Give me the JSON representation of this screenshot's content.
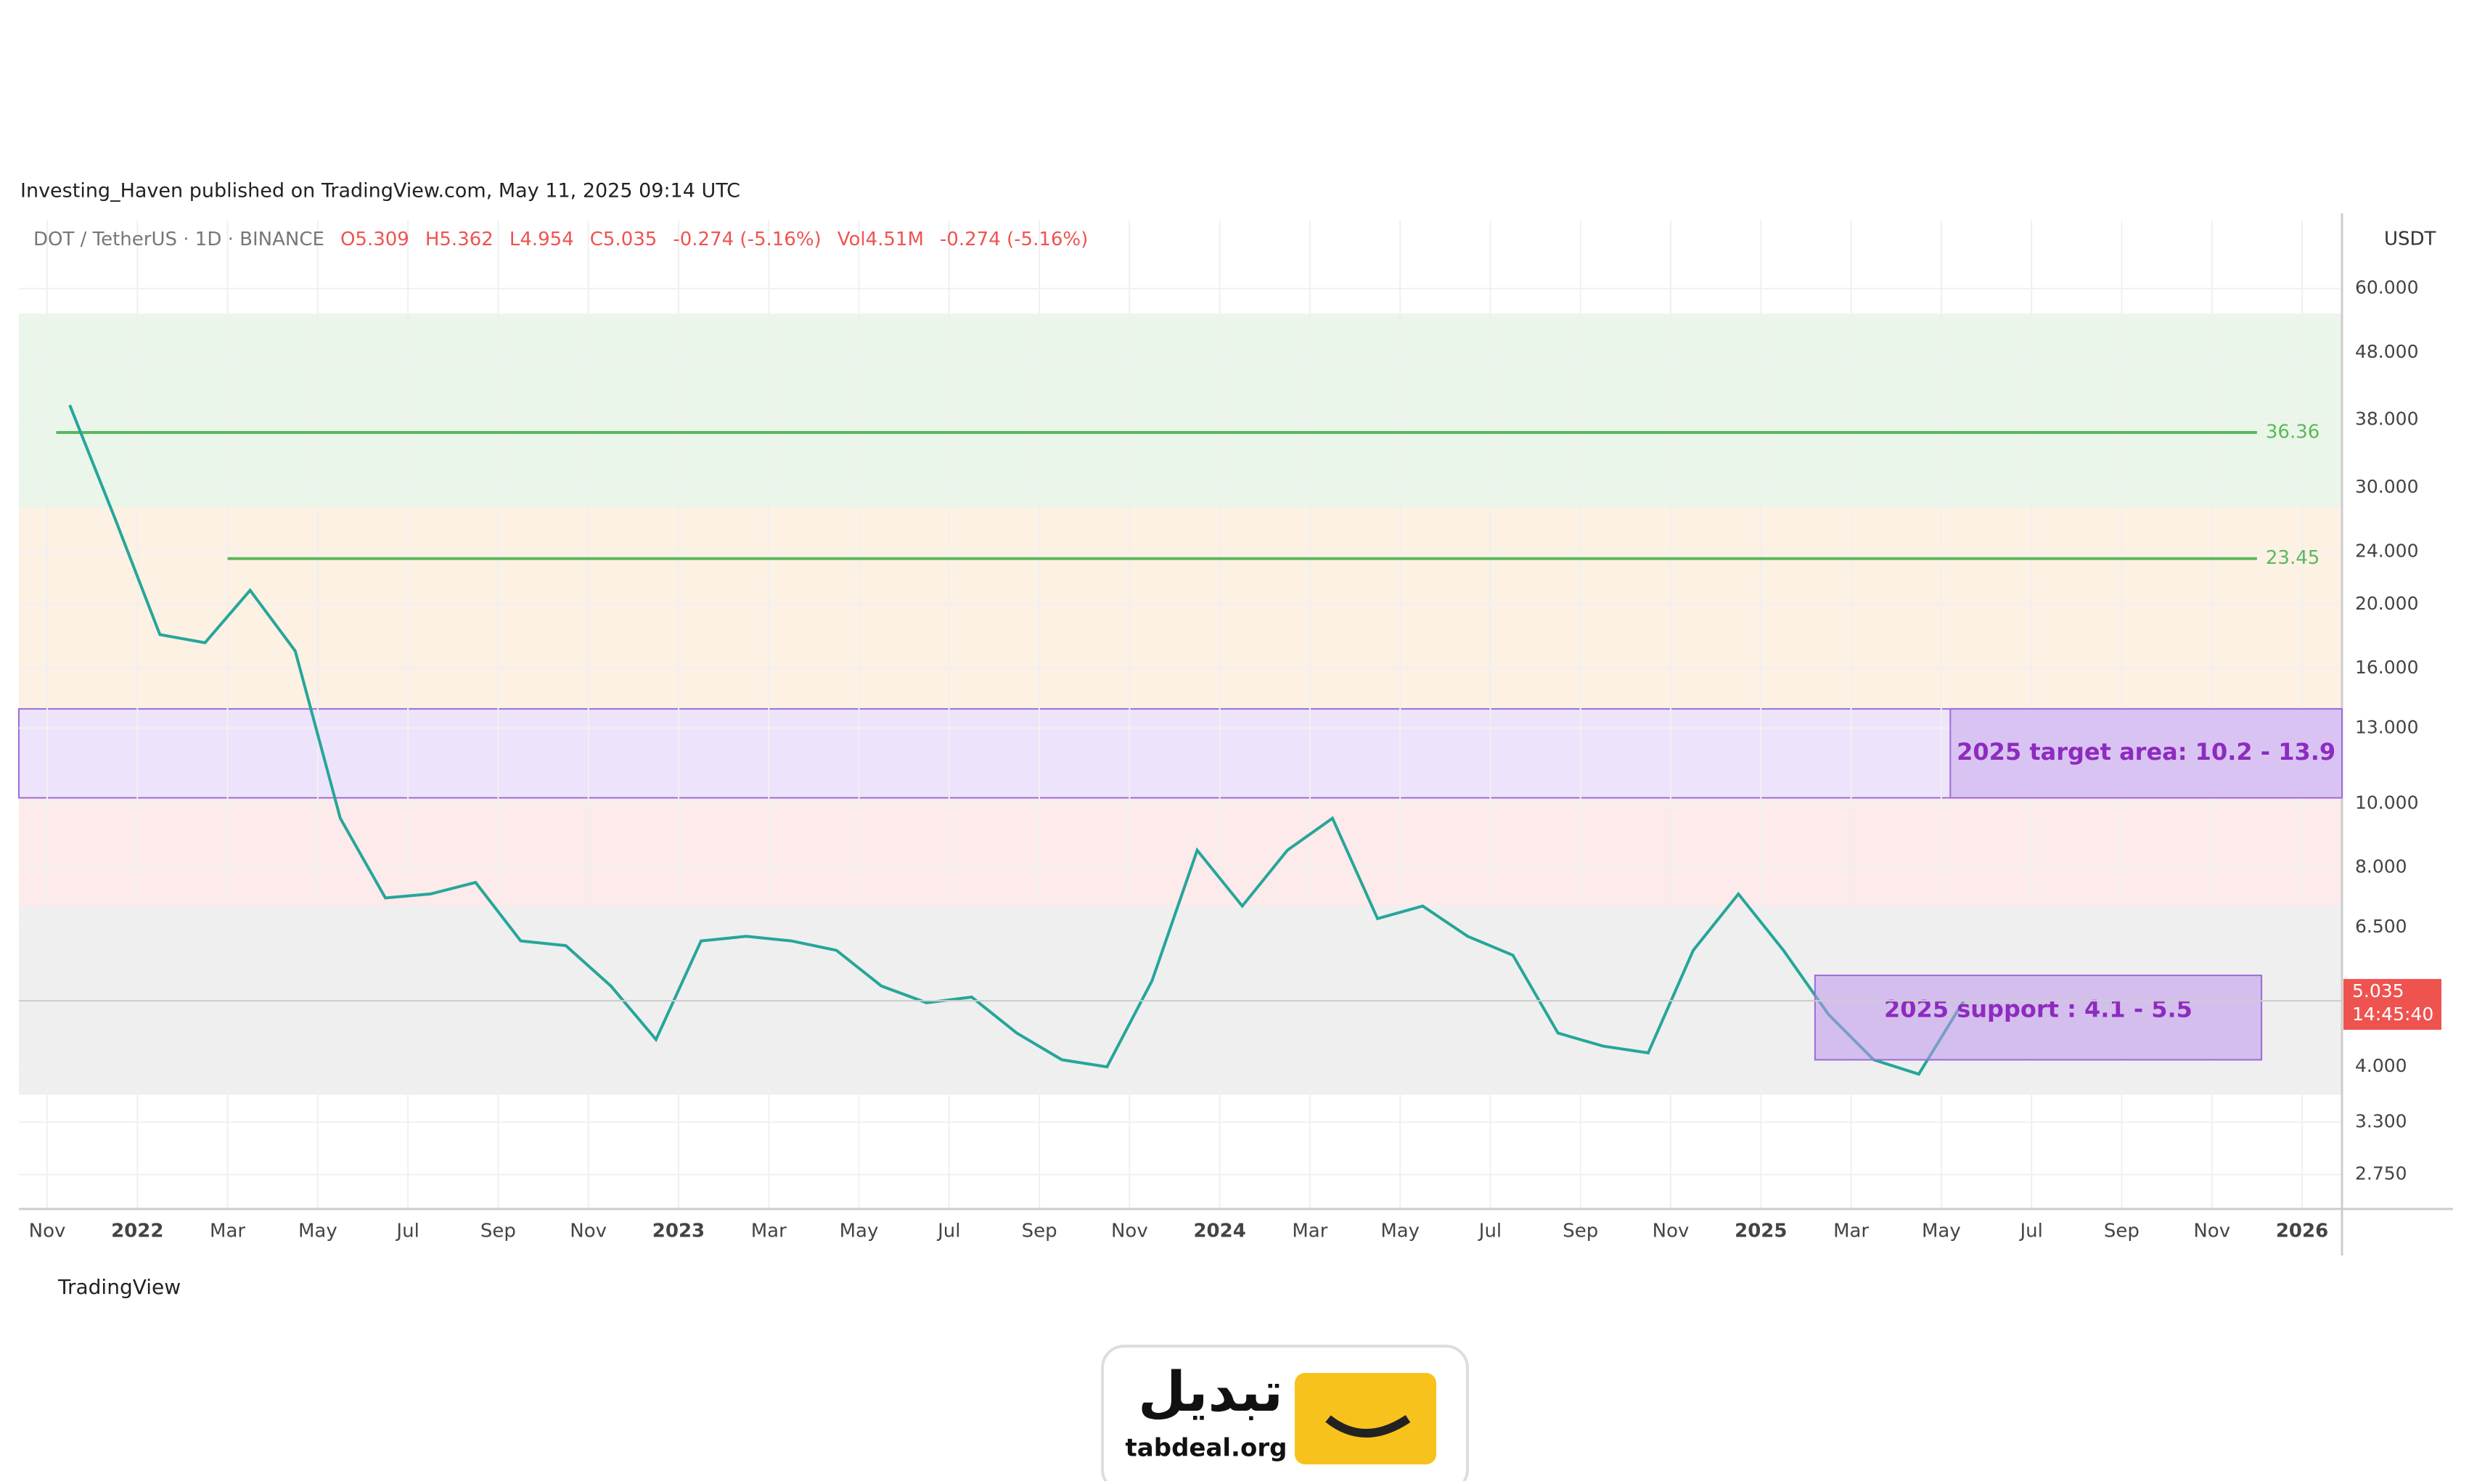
{
  "header": {
    "publisher": "Investing_Haven published on TradingView.com, May 11, 2025 09:14 UTC"
  },
  "chart_data": {
    "type": "line",
    "symbol": "DOT / TetherUS · 1D · BINANCE",
    "ohlcv": [
      "O5.309",
      "H5.362",
      "L4.954",
      "C5.035",
      "-0.274 (-5.16%)",
      "Vol4.51M",
      "-0.274 (-5.16%)"
    ],
    "currency": "USDT",
    "x": [
      "2021-11",
      "2021-12",
      "2022-01",
      "2022-02",
      "2022-03",
      "2022-04",
      "2022-05",
      "2022-06",
      "2022-07",
      "2022-08",
      "2022-09",
      "2022-10",
      "2022-11",
      "2022-12",
      "2023-01",
      "2023-02",
      "2023-03",
      "2023-04",
      "2023-05",
      "2023-06",
      "2023-07",
      "2023-08",
      "2023-09",
      "2023-10",
      "2023-11",
      "2023-12",
      "2024-01",
      "2024-02",
      "2024-03",
      "2024-04",
      "2024-05",
      "2024-06",
      "2024-07",
      "2024-08",
      "2024-09",
      "2024-10",
      "2024-11",
      "2024-12",
      "2025-01",
      "2025-02",
      "2025-03",
      "2025-04",
      "2025-05"
    ],
    "values": [
      40,
      27,
      18,
      17.5,
      21,
      17,
      9.5,
      7.2,
      7.3,
      7.6,
      6.2,
      6.1,
      5.3,
      4.4,
      6.2,
      6.3,
      6.2,
      6.0,
      5.3,
      5.0,
      5.1,
      4.5,
      4.1,
      4.0,
      5.4,
      8.5,
      7.0,
      8.5,
      9.5,
      6.7,
      7.0,
      6.3,
      5.9,
      4.5,
      4.3,
      4.2,
      6.0,
      7.3,
      6.0,
      4.8,
      4.1,
      3.9,
      5.035
    ],
    "color": "#26a69a",
    "yscale": "log",
    "ylim": [
      2.44,
      76
    ],
    "yticks": [
      {
        "value": 60,
        "label": "60.000"
      },
      {
        "value": 48,
        "label": "48.000"
      },
      {
        "value": 38,
        "label": "38.000"
      },
      {
        "value": 30,
        "label": "30.000"
      },
      {
        "value": 24,
        "label": "24.000"
      },
      {
        "value": 20,
        "label": "20.000"
      },
      {
        "value": 16,
        "label": "16.000"
      },
      {
        "value": 13,
        "label": "13.000"
      },
      {
        "value": 10,
        "label": "10.000"
      },
      {
        "value": 8,
        "label": "8.000"
      },
      {
        "value": 6.5,
        "label": "6.500"
      },
      {
        "value": 4,
        "label": "4.000"
      },
      {
        "value": 3.3,
        "label": "3.300"
      },
      {
        "value": 2.75,
        "label": "2.750"
      }
    ],
    "xticks": [
      {
        "value": "2021-11",
        "label": "Nov"
      },
      {
        "value": "2022-01",
        "label": "2022"
      },
      {
        "value": "2022-03",
        "label": "Mar"
      },
      {
        "value": "2022-05",
        "label": "May"
      },
      {
        "value": "2022-07",
        "label": "Jul"
      },
      {
        "value": "2022-09",
        "label": "Sep"
      },
      {
        "value": "2022-11",
        "label": "Nov"
      },
      {
        "value": "2023-01",
        "label": "2023"
      },
      {
        "value": "2023-03",
        "label": "Mar"
      },
      {
        "value": "2023-05",
        "label": "May"
      },
      {
        "value": "2023-07",
        "label": "Jul"
      },
      {
        "value": "2023-09",
        "label": "Sep"
      },
      {
        "value": "2023-11",
        "label": "Nov"
      },
      {
        "value": "2024-01",
        "label": "2024"
      },
      {
        "value": "2024-03",
        "label": "Mar"
      },
      {
        "value": "2024-05",
        "label": "May"
      },
      {
        "value": "2024-07",
        "label": "Jul"
      },
      {
        "value": "2024-09",
        "label": "Sep"
      },
      {
        "value": "2024-11",
        "label": "Nov"
      },
      {
        "value": "2025-01",
        "label": "2025"
      },
      {
        "value": "2025-03",
        "label": "Mar"
      },
      {
        "value": "2025-05",
        "label": "May"
      },
      {
        "value": "2025-07",
        "label": "Jul"
      },
      {
        "value": "2025-09",
        "label": "Sep"
      },
      {
        "value": "2025-11",
        "label": "Nov"
      },
      {
        "value": "2026-01",
        "label": "2026"
      }
    ],
    "hlines": [
      {
        "value": 36.36,
        "color": "#5cb85c"
      },
      {
        "value": 23.45,
        "color": "#5cb85c"
      }
    ],
    "zones": [
      {
        "low": 10.2,
        "high": 13.9,
        "label": "2025 target area: 10.2 - 13.9"
      },
      {
        "low": 4.1,
        "high": 5.5,
        "label": "2025 support : 4.1 - 5.5"
      }
    ],
    "background_zones": [
      {
        "low": 28,
        "high": 55,
        "color": "#eaf6ea"
      },
      {
        "low": 13.9,
        "high": 28,
        "color": "#fdf1e4"
      },
      {
        "low": 7,
        "high": 10.2,
        "color": "#fdeaea"
      },
      {
        "low": 3.63,
        "high": 7,
        "color": "#efefef"
      }
    ],
    "last_price": 5.035,
    "countdown": "14:45:40"
  },
  "footer": {
    "brand": "TradingView",
    "logo_text": "تبدیل",
    "site": "tabdeal.org"
  }
}
